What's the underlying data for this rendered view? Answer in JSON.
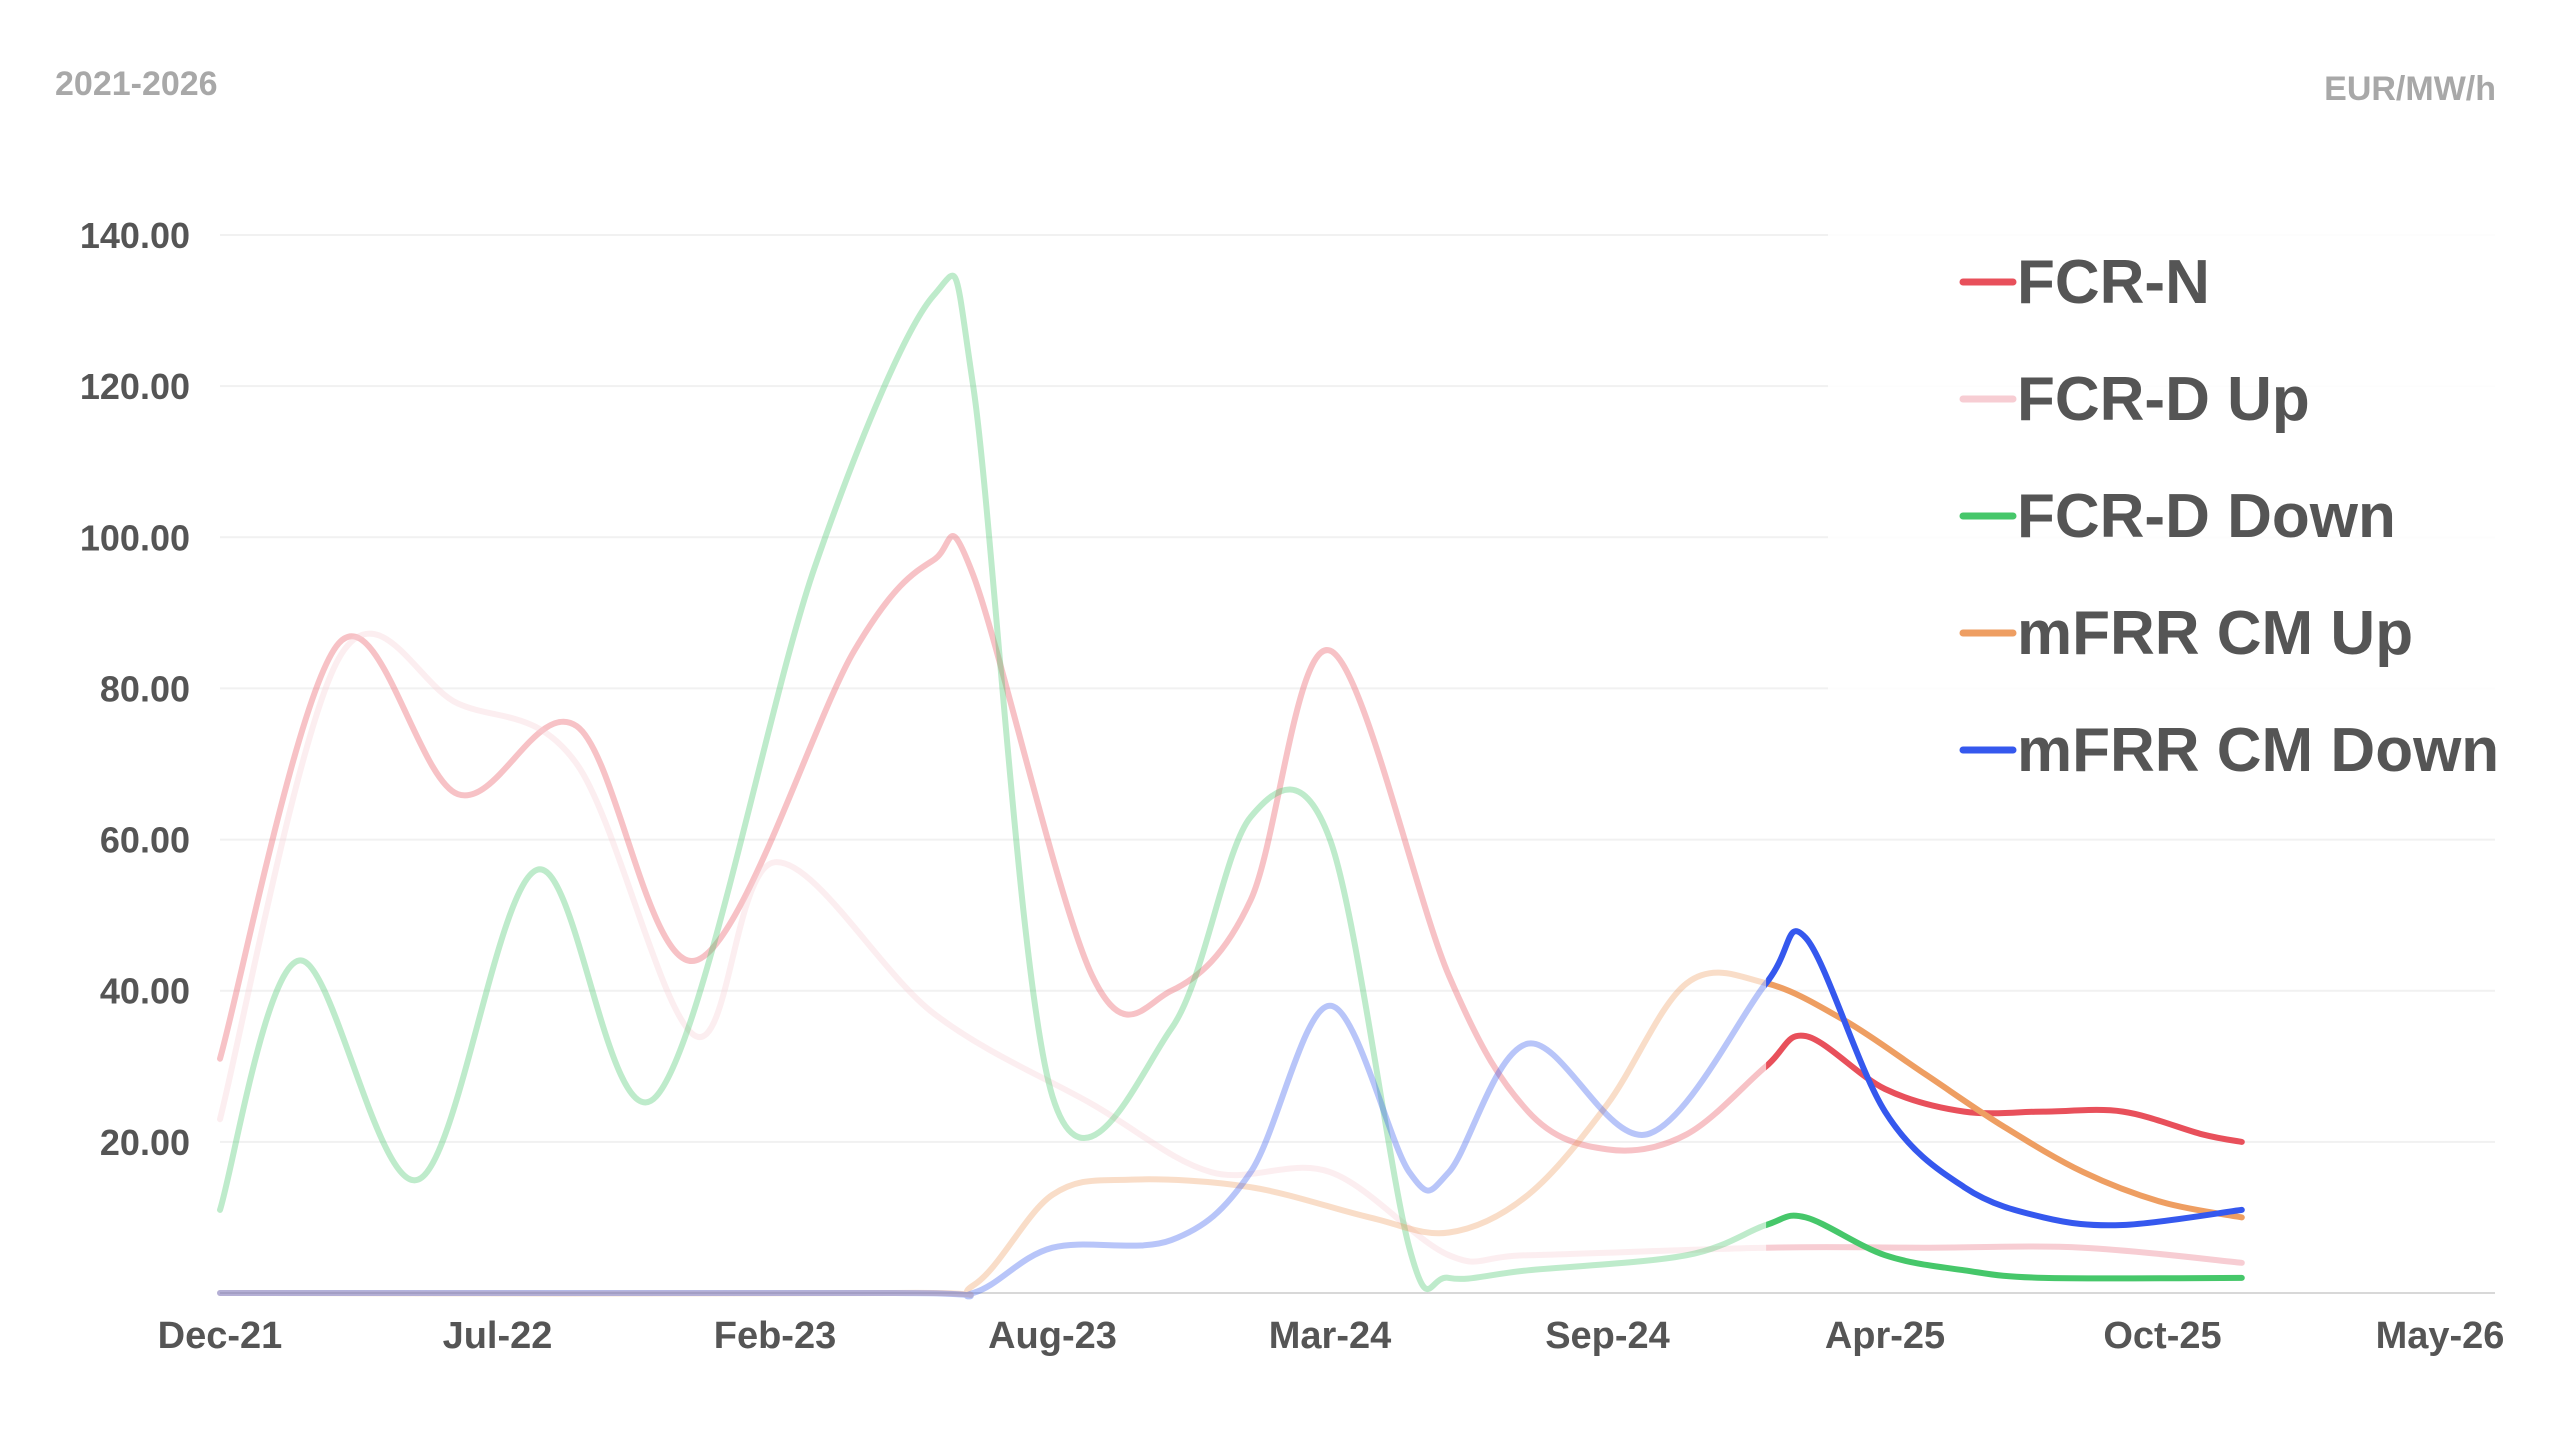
{
  "header": {
    "left_label": "2021-2026",
    "right_label": "EUR/MW/h"
  },
  "chart_data": {
    "type": "line",
    "title": "",
    "xlabel": "",
    "ylabel": "",
    "unit": "EUR/MW/h",
    "x_ticks": [
      "Dec-21",
      "Jul-22",
      "Feb-23",
      "Aug-23",
      "Mar-24",
      "Sep-24",
      "Apr-25",
      "Oct-25",
      "May-26"
    ],
    "y_ticks": [
      "20.00",
      "40.00",
      "60.00",
      "80.00",
      "100.00",
      "120.00",
      "140.00"
    ],
    "ylim": [
      0,
      140
    ],
    "xlim_months": [
      "2021-12",
      "2026-05"
    ],
    "forecast_from": "2025-03",
    "grid": true,
    "legend_position": "top-right",
    "series": [
      {
        "name": "FCR-N",
        "color": "#e8505b",
        "points": [
          [
            "2021-12",
            31
          ],
          [
            "2022-03",
            86
          ],
          [
            "2022-06",
            66
          ],
          [
            "2022-09",
            75
          ],
          [
            "2022-12",
            44
          ],
          [
            "2023-04",
            85
          ],
          [
            "2023-06",
            97
          ],
          [
            "2023-07",
            95
          ],
          [
            "2023-10",
            42
          ],
          [
            "2023-12",
            40
          ],
          [
            "2024-02",
            52
          ],
          [
            "2024-04",
            85
          ],
          [
            "2024-07",
            42
          ],
          [
            "2024-09",
            24
          ],
          [
            "2024-11",
            19
          ],
          [
            "2025-01",
            21
          ],
          [
            "2025-03",
            30
          ],
          [
            "2025-04",
            34
          ],
          [
            "2025-06",
            27
          ],
          [
            "2025-08",
            24
          ],
          [
            "2025-10",
            24
          ],
          [
            "2025-12",
            24
          ],
          [
            "2026-02",
            21
          ],
          [
            "2026-03",
            20
          ]
        ]
      },
      {
        "name": "FCR-D Up",
        "color": "#f7cdd3",
        "points": [
          [
            "2021-12",
            23
          ],
          [
            "2022-03",
            84
          ],
          [
            "2022-06",
            78
          ],
          [
            "2022-09",
            70
          ],
          [
            "2022-12",
            34
          ],
          [
            "2023-02",
            57
          ],
          [
            "2023-06",
            37
          ],
          [
            "2023-10",
            25
          ],
          [
            "2024-01",
            16
          ],
          [
            "2024-04",
            16
          ],
          [
            "2024-07",
            5
          ],
          [
            "2024-09",
            5
          ],
          [
            "2025-03",
            6
          ],
          [
            "2025-07",
            6
          ],
          [
            "2025-11",
            6
          ],
          [
            "2026-03",
            4
          ]
        ]
      },
      {
        "name": "FCR-D Down",
        "color": "#46c76a",
        "points": [
          [
            "2021-12",
            11
          ],
          [
            "2022-02",
            44
          ],
          [
            "2022-05",
            15
          ],
          [
            "2022-08",
            56
          ],
          [
            "2022-11",
            26
          ],
          [
            "2023-03",
            96
          ],
          [
            "2023-06",
            132
          ],
          [
            "2023-07",
            120
          ],
          [
            "2023-09",
            26
          ],
          [
            "2023-12",
            35
          ],
          [
            "2024-02",
            63
          ],
          [
            "2024-04",
            60
          ],
          [
            "2024-06",
            6
          ],
          [
            "2024-07",
            2
          ],
          [
            "2024-09",
            3
          ],
          [
            "2025-01",
            5
          ],
          [
            "2025-03",
            9
          ],
          [
            "2025-04",
            10
          ],
          [
            "2025-06",
            5
          ],
          [
            "2025-08",
            3
          ],
          [
            "2025-10",
            2
          ],
          [
            "2026-03",
            2
          ]
        ]
      },
      {
        "name": "mFRR CM Up",
        "color": "#ee9e62",
        "points": [
          [
            "2021-12",
            0
          ],
          [
            "2023-05",
            0
          ],
          [
            "2023-07",
            1
          ],
          [
            "2023-09",
            13
          ],
          [
            "2023-11",
            15
          ],
          [
            "2024-02",
            14
          ],
          [
            "2024-05",
            10
          ],
          [
            "2024-07",
            8
          ],
          [
            "2024-09",
            13
          ],
          [
            "2024-11",
            25
          ],
          [
            "2025-01",
            41
          ],
          [
            "2025-03",
            41
          ],
          [
            "2025-05",
            36
          ],
          [
            "2025-07",
            29
          ],
          [
            "2025-09",
            22
          ],
          [
            "2025-11",
            16
          ],
          [
            "2026-01",
            12
          ],
          [
            "2026-03",
            10
          ]
        ]
      },
      {
        "name": "mFRR CM Down",
        "color": "#3558ee",
        "points": [
          [
            "2021-12",
            0
          ],
          [
            "2023-05",
            0
          ],
          [
            "2023-07",
            0
          ],
          [
            "2023-09",
            6
          ],
          [
            "2023-12",
            7
          ],
          [
            "2024-02",
            16
          ],
          [
            "2024-04",
            38
          ],
          [
            "2024-06",
            16
          ],
          [
            "2024-07",
            16
          ],
          [
            "2024-09",
            33
          ],
          [
            "2024-12",
            21
          ],
          [
            "2025-03",
            41
          ],
          [
            "2025-04",
            47
          ],
          [
            "2025-06",
            24
          ],
          [
            "2025-08",
            14
          ],
          [
            "2025-10",
            10
          ],
          [
            "2025-12",
            9
          ],
          [
            "2026-03",
            11
          ]
        ]
      }
    ]
  }
}
